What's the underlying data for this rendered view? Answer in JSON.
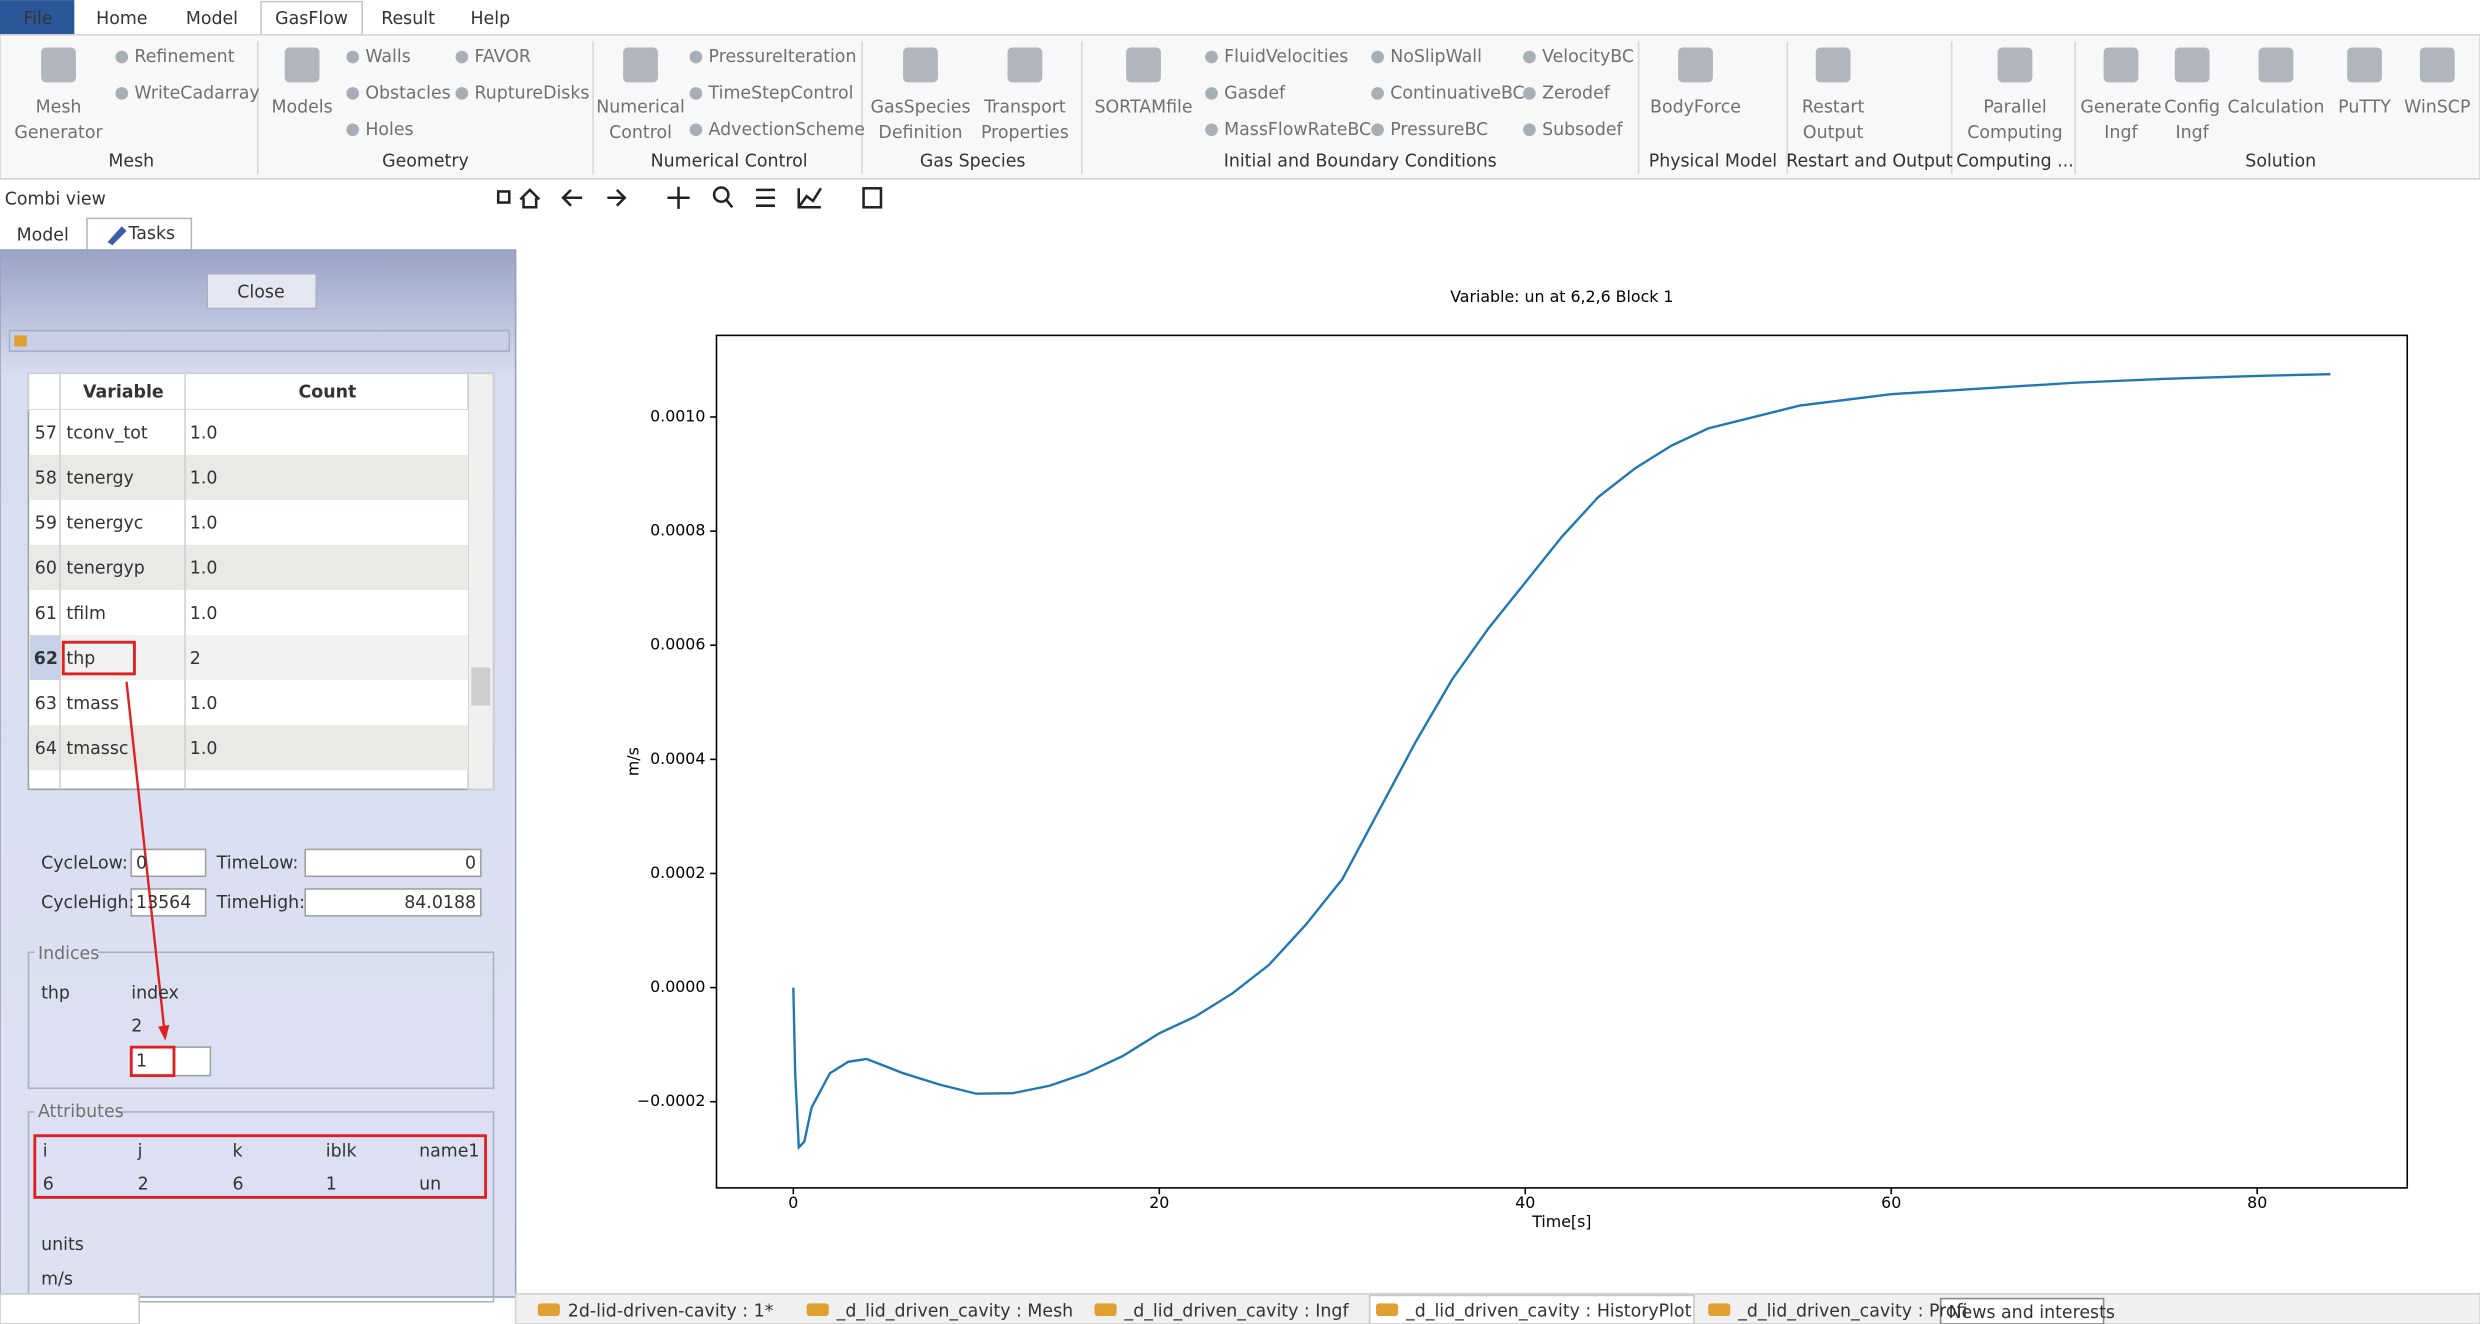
{
  "menu": [
    "File",
    "Home",
    "Model",
    "GasFlow",
    "Result",
    "Help"
  ],
  "ribbon": {
    "groups": [
      {
        "title": "Mesh",
        "items": [
          [
            "Mesh",
            "Generator"
          ],
          "Refinement",
          "WriteCadarray"
        ]
      },
      {
        "title": "Geometry",
        "items": [
          "Models",
          "Walls",
          "Obstacles",
          "Holes",
          "FAVOR",
          "RuptureDisks"
        ]
      },
      {
        "title": "Numerical Control",
        "items": [
          [
            "Numerical",
            "Control"
          ],
          "PressureIteration",
          "TimeStepControl",
          "AdvectionScheme"
        ]
      },
      {
        "title": "Gas Species",
        "items": [
          [
            "GasSpecies",
            "Definition"
          ],
          [
            "Transport",
            "Properties"
          ]
        ]
      },
      {
        "title": "Initial and Boundary Conditions",
        "items": [
          "SORTAMfile",
          "FluidVelocities",
          "Gasdef",
          "MassFlowRateBC",
          "NoSlipWall",
          "ContinuativeBC",
          "PressureBC",
          "VelocityBC",
          "Zerodef",
          "Subsodef"
        ]
      },
      {
        "title": "Physical Model",
        "items": [
          "BodyForce"
        ]
      },
      {
        "title": "Restart and Output",
        "items": [
          [
            "Restart",
            "Output"
          ]
        ]
      },
      {
        "title": "Computing ...",
        "items": [
          [
            "Parallel",
            "Computing"
          ]
        ]
      },
      {
        "title": "Solution",
        "items": [
          [
            "Generate",
            "Ingf"
          ],
          [
            "Config",
            "Ingf"
          ],
          "Calculation",
          "PuTTY",
          "WinSCP"
        ]
      }
    ]
  },
  "combi_view": {
    "title": "Combi view",
    "tabs": [
      "Model",
      "Tasks"
    ],
    "close": "Close",
    "table": {
      "columns": [
        "Variable",
        "Count"
      ],
      "rows": [
        [
          57,
          "tconv_tot",
          "1.0"
        ],
        [
          58,
          "tenergy",
          "1.0"
        ],
        [
          59,
          "tenergyc",
          "1.0"
        ],
        [
          60,
          "tenergyp",
          "1.0"
        ],
        [
          61,
          "tfilm",
          "1.0"
        ],
        [
          62,
          "thp",
          "2"
        ],
        [
          63,
          "tmass",
          "1.0"
        ],
        [
          64,
          "tmassc",
          "1.0"
        ]
      ]
    },
    "cycle_low_label": "CycleLow:",
    "cycle_low": 0,
    "time_low_label": "TimeLow:",
    "time_low": 0,
    "cycle_high_label": "CycleHigh:",
    "cycle_high": 13564,
    "time_high_label": "TimeHigh:",
    "time_high": 84.0188,
    "indices": {
      "title": "Indices",
      "variable": "thp",
      "column": "index",
      "max": 2,
      "value": 1
    },
    "attributes": {
      "title": "Attributes",
      "columns": [
        "i",
        "j",
        "k",
        "iblk",
        "name1"
      ],
      "values": [
        6,
        2,
        6,
        1,
        "un"
      ],
      "units_label": "units",
      "units": "m/s"
    }
  },
  "document_tabs": [
    "2d-lid-driven-cavity : 1*",
    "_d_lid_driven_cavity : Mesh",
    "_d_lid_driven_cavity : Ingf",
    "_d_lid_driven_cavity : HistoryPlot",
    "_d_lid_driven_cavity : Profi"
  ],
  "news": "News and interests",
  "chart_data": {
    "type": "line",
    "title": "Variable: un at 6,2,6 Block 1",
    "x_label": "Time[s]",
    "y_label": "m/s",
    "color": "#1f77b4",
    "x": [
      0,
      0.1,
      0.3,
      0.6,
      1,
      2,
      3,
      4,
      6,
      8,
      10,
      12,
      14,
      16,
      18,
      20,
      22,
      24,
      26,
      28,
      30,
      32,
      34,
      36,
      38,
      40,
      42,
      44,
      46,
      48,
      50,
      55,
      60,
      65,
      70,
      75,
      80,
      84
    ],
    "values": [
      0,
      -0.00015,
      -0.00028,
      -0.00027,
      -0.00021,
      -0.00015,
      -0.00013,
      -0.000125,
      -0.00015,
      -0.00017,
      -0.000186,
      -0.000185,
      -0.000172,
      -0.00015,
      -0.00012,
      -8e-05,
      -5e-05,
      -1e-05,
      4e-05,
      0.00011,
      0.00019,
      0.00031,
      0.00043,
      0.00054,
      0.00063,
      0.00071,
      0.00079,
      0.00086,
      0.00091,
      0.00095,
      0.00098,
      0.00102,
      0.00104,
      0.00105,
      0.00106,
      0.001067,
      0.001072,
      0.001075
    ],
    "xlim": [
      -4.2,
      88.2
    ],
    "xticks": [
      0,
      20,
      40,
      60,
      80
    ],
    "ylim": [
      -0.000351,
      0.001143
    ],
    "yticks": [
      {
        "value": -0.0002,
        "label": "−0.0002"
      },
      {
        "value": 0,
        "label": "0.0000"
      },
      {
        "value": 0.0002,
        "label": "0.0002"
      },
      {
        "value": 0.0004,
        "label": "0.0004"
      },
      {
        "value": 0.0006,
        "label": "0.0006"
      },
      {
        "value": 0.0008,
        "label": "0.0008"
      },
      {
        "value": 0.001,
        "label": "0.0010"
      }
    ],
    "grid": false
  }
}
